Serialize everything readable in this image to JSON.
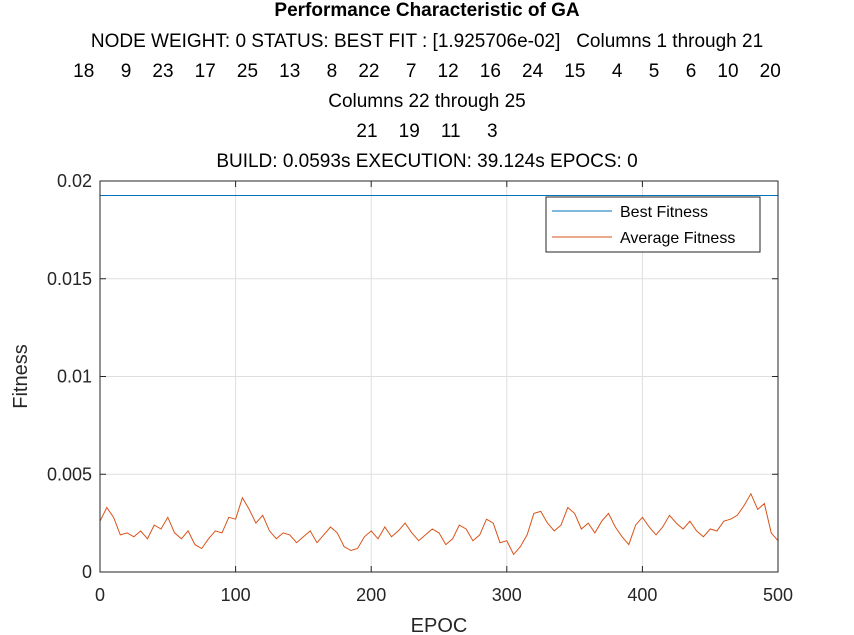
{
  "titles": [
    "Performance Characteristic of GA",
    "NODE WEIGHT: 0 STATUS: BEST FIT : [1.925706e-02]   Columns 1 through 21",
    "18     9    23    17    25    13     8    22     7    12    16    24    15     4     5     6    10    20",
    "Columns 22 through 25",
    "21    19    11     3",
    "BUILD: 0.0593s EXECUTION: 39.124s EPOCS: 0"
  ],
  "colors": {
    "best": "#0072BD",
    "average": "#D95319",
    "grid": "#DFDFDF",
    "axis": "#262626"
  },
  "chart_data": {
    "type": "line",
    "title": "Performance Characteristic of GA",
    "xlabel": "EPOC",
    "ylabel": "Fitness",
    "xlim": [
      0,
      500
    ],
    "ylim": [
      0,
      0.02
    ],
    "xticks": [
      "0",
      "100",
      "200",
      "300",
      "400",
      "500"
    ],
    "yticks": [
      "0",
      "0.005",
      "0.01",
      "0.015",
      "0.02"
    ],
    "grid": true,
    "legend_position": "top-right",
    "series": [
      {
        "name": "Best Fitness",
        "x": [
          0,
          500
        ],
        "y": [
          0.01926,
          0.01926
        ]
      },
      {
        "name": "Average Fitness",
        "x": [
          0,
          5,
          10,
          15,
          20,
          25,
          30,
          35,
          40,
          45,
          50,
          55,
          60,
          65,
          70,
          75,
          80,
          85,
          90,
          95,
          100,
          105,
          110,
          115,
          120,
          125,
          130,
          135,
          140,
          145,
          150,
          155,
          160,
          165,
          170,
          175,
          180,
          185,
          190,
          195,
          200,
          205,
          210,
          215,
          220,
          225,
          230,
          235,
          240,
          245,
          250,
          255,
          260,
          265,
          270,
          275,
          280,
          285,
          290,
          295,
          300,
          305,
          310,
          315,
          320,
          325,
          330,
          335,
          340,
          345,
          350,
          355,
          360,
          365,
          370,
          375,
          380,
          385,
          390,
          395,
          400,
          405,
          410,
          415,
          420,
          425,
          430,
          435,
          440,
          445,
          450,
          455,
          460,
          465,
          470,
          475,
          480,
          485,
          490,
          495,
          500
        ],
        "y": [
          0.0026,
          0.0033,
          0.0028,
          0.0019,
          0.002,
          0.0018,
          0.0021,
          0.0017,
          0.0024,
          0.0022,
          0.0028,
          0.002,
          0.0017,
          0.0021,
          0.0014,
          0.0012,
          0.0017,
          0.0021,
          0.002,
          0.0028,
          0.0027,
          0.0038,
          0.0032,
          0.0025,
          0.0029,
          0.0021,
          0.0017,
          0.002,
          0.0019,
          0.0015,
          0.0018,
          0.0021,
          0.0015,
          0.0019,
          0.0023,
          0.002,
          0.0013,
          0.0011,
          0.0012,
          0.0018,
          0.0021,
          0.0017,
          0.0023,
          0.0018,
          0.0021,
          0.0025,
          0.002,
          0.0016,
          0.0019,
          0.0022,
          0.002,
          0.0014,
          0.0017,
          0.0024,
          0.0022,
          0.0016,
          0.0019,
          0.0027,
          0.0025,
          0.0015,
          0.0016,
          0.0009,
          0.0013,
          0.0019,
          0.003,
          0.0031,
          0.0025,
          0.0021,
          0.0024,
          0.0033,
          0.003,
          0.0022,
          0.0025,
          0.002,
          0.0026,
          0.003,
          0.0023,
          0.0018,
          0.0014,
          0.0024,
          0.0028,
          0.0023,
          0.0019,
          0.0023,
          0.0029,
          0.0025,
          0.0022,
          0.0026,
          0.0021,
          0.0018,
          0.0022,
          0.0021,
          0.0026,
          0.0027,
          0.0029,
          0.0034,
          0.004,
          0.0032,
          0.0035,
          0.002,
          0.0016
        ]
      }
    ]
  }
}
